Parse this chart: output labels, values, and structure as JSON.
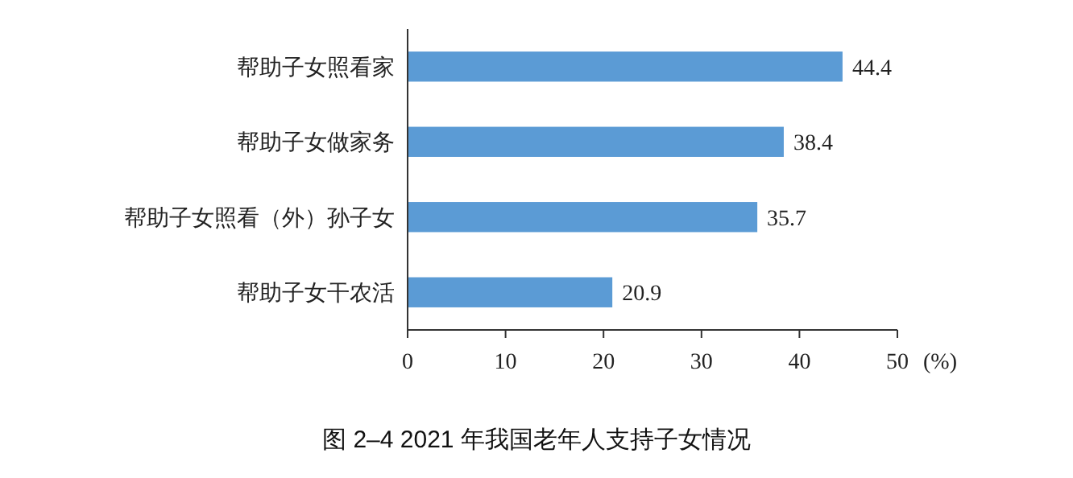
{
  "chart_data": {
    "type": "bar",
    "orientation": "horizontal",
    "title": "图 2–4 2021 年我国老年人支持子女情况",
    "xlabel": "(%)",
    "categories": [
      "帮助子女照看家",
      "帮助子女做家务",
      "帮助子女照看（外）孙子女",
      "帮助子女干农活"
    ],
    "values": [
      44.4,
      38.4,
      35.7,
      20.9
    ],
    "color": "#5b9bd5",
    "xlim": [
      0,
      50
    ],
    "xticks": [
      0,
      10,
      20,
      30,
      40,
      50
    ],
    "data_labels": true,
    "grid": false
  }
}
